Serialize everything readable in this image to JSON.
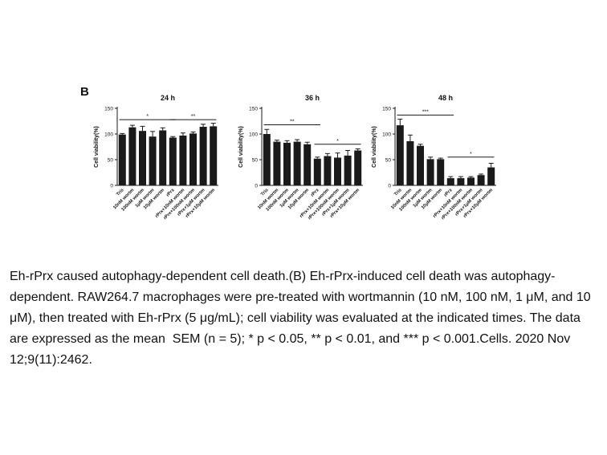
{
  "figure": {
    "panel_label": "B",
    "colors": {
      "bar": "#1a1a1a",
      "axis": "#1a1a1a",
      "text": "#111111"
    }
  },
  "chart_data": [
    {
      "type": "bar",
      "title": "24 h",
      "ylabel": "Cell viability(%)",
      "ylim": [
        0,
        150
      ],
      "yticks": [
        0,
        50,
        100,
        150
      ],
      "categories": [
        "Tris",
        "10nM wortm",
        "100nM wortm",
        "1μM wortm",
        "10μM wortm",
        "rPrx",
        "rPrx+10nM wortm",
        "rPrx+100nM wortm",
        "rPrx+1μM wortm",
        "rPrx+10μM wortm"
      ],
      "values": [
        99,
        113,
        106,
        95,
        107,
        93,
        97,
        101,
        114,
        115
      ],
      "errors": [
        2,
        4,
        9,
        10,
        5,
        2,
        5,
        3,
        5,
        6
      ],
      "significance": [
        {
          "label": "*",
          "from": 0,
          "to": 5,
          "y": 128
        },
        {
          "label": "**",
          "from": 5,
          "to": 9,
          "y": 128
        }
      ]
    },
    {
      "type": "bar",
      "title": "36 h",
      "ylabel": "Cell viability(%)",
      "ylim": [
        0,
        150
      ],
      "yticks": [
        0,
        50,
        100,
        150
      ],
      "categories": [
        "Tris",
        "10nM wortm",
        "100nM wortm",
        "1μM wortm",
        "10μM wortm",
        "rPrx",
        "rPrx+10nM wortm",
        "rPrx+100nM wortm",
        "rPrx+1μM wortm",
        "rPrx+10μM wortm"
      ],
      "values": [
        100,
        85,
        83,
        85,
        80,
        52,
        57,
        54,
        58,
        68
      ],
      "errors": [
        9,
        3,
        4,
        4,
        4,
        3,
        5,
        9,
        10,
        3
      ],
      "significance": [
        {
          "label": "**",
          "from": 0,
          "to": 5,
          "y": 118
        },
        {
          "label": "*",
          "from": 5,
          "to": 9,
          "y": 80
        }
      ]
    },
    {
      "type": "bar",
      "title": "48 h",
      "ylabel": "Cell viability(%)",
      "ylim": [
        0,
        150
      ],
      "yticks": [
        0,
        50,
        100,
        150
      ],
      "categories": [
        "Tris",
        "10nM wortm",
        "100nM wortm",
        "1μM wortm",
        "10μM wortm",
        "rPrx",
        "rPrx+10nM wortm",
        "rPrx+100nM wortm",
        "rPrx+1μM wortm",
        "rPrx+10μM wortm"
      ],
      "values": [
        117,
        86,
        77,
        51,
        51,
        14,
        14,
        15,
        20,
        35
      ],
      "errors": [
        12,
        12,
        3,
        4,
        2,
        3,
        3,
        2,
        2,
        8
      ],
      "significance": [
        {
          "label": "***",
          "from": 0,
          "to": 5,
          "y": 137
        },
        {
          "label": "*",
          "from": 5,
          "to": 9,
          "y": 55
        }
      ]
    }
  ],
  "caption": {
    "text": "Eh-rPrx caused autophagy-dependent cell death.(B) Eh-rPrx-induced cell death was autophagy-dependent. RAW264.7 macrophages were pre-treated with wortmannin (10 nM, 100 nM, 1 μM, and 10 μM), then treated with Eh-rPrx (5 μg/mL); cell viability was evaluated at the indicated times. The data are expressed as the mean  SEM (n = 5); * p < 0.05, ** p < 0.01, and *** p < 0.001.",
    "citation": "Cells. 2020 Nov 12;9(11):2462."
  }
}
